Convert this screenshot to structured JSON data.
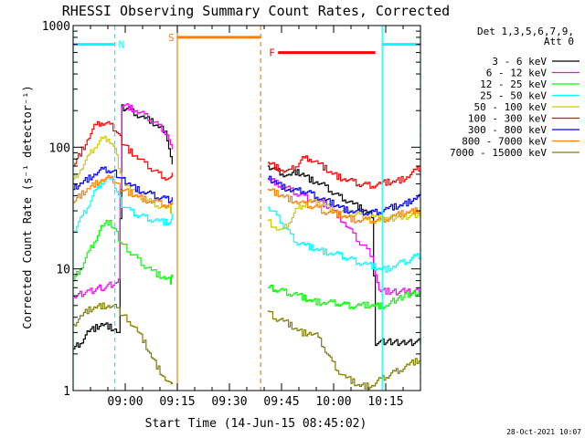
{
  "chart_data": {
    "type": "line",
    "title": "RHESSI Observing Summary Count Rates, Corrected",
    "xlabel": "Start Time (14-Jun-15 08:45:02)",
    "ylabel": "Corrected Count Rate (s⁻¹ detector⁻¹)",
    "yscale": "log",
    "ylim": [
      1,
      1000
    ],
    "xlim_minutes": [
      0,
      100
    ],
    "x_tick_labels": [
      "09:00",
      "09:15",
      "09:30",
      "09:45",
      "10:00",
      "10:15"
    ],
    "x_tick_minutes": [
      15,
      30,
      45,
      60,
      75,
      90
    ],
    "y_tick_labels": [
      "1",
      "10",
      "100",
      "1000"
    ],
    "y_tick_values": [
      1,
      10,
      100,
      1000
    ],
    "legend_header": [
      "Det 1,3,5,6,7,9,",
      "Att 0"
    ],
    "timestamp": "28-Oct-2021 10:07",
    "annotations": [
      {
        "label": "N",
        "color": "#00ffff",
        "start_min": 0,
        "end_min": 12,
        "y": 700
      },
      {
        "label": "S",
        "color": "#ff8000",
        "start_min": 30,
        "end_min": 54,
        "y": 800
      },
      {
        "label": "F",
        "color": "#ff0000",
        "start_min": 59,
        "end_min": 87,
        "y": 600
      },
      {
        "label": "",
        "color": "#00ffff",
        "start_min": 89,
        "end_min": 100,
        "y": 700
      }
    ],
    "vlines": [
      {
        "minute": 0,
        "color": "#00ffff",
        "style": "solid"
      },
      {
        "minute": 12,
        "color": "#00ffff",
        "style": "dashed"
      },
      {
        "minute": 30,
        "color": "#ff8000",
        "style": "solid"
      },
      {
        "minute": 54,
        "color": "#ff8000",
        "style": "dashed"
      },
      {
        "minute": 89,
        "color": "#00ffff",
        "style": "solid"
      },
      {
        "minute": 100,
        "color": "#00ffff",
        "style": "dashed"
      }
    ],
    "series": [
      {
        "name": "3 - 6 keV",
        "color": "#000000",
        "x": [
          0,
          2,
          4,
          6,
          8,
          10,
          12,
          13,
          14,
          16,
          18,
          20,
          22,
          24,
          26,
          27,
          28.5,
          56,
          58,
          60,
          62,
          64,
          66,
          68,
          70,
          72,
          74,
          76,
          78,
          80,
          82,
          84,
          86,
          87,
          90,
          95,
          100
        ],
        "y": [
          2.2,
          2.5,
          3.0,
          3.2,
          3.5,
          3.4,
          3.2,
          3.0,
          210,
          205,
          190,
          175,
          165,
          150,
          140,
          120,
          70,
          70,
          65,
          62,
          58,
          62,
          60,
          55,
          52,
          48,
          44,
          40,
          38,
          35,
          32,
          30,
          28,
          2.5,
          2.5,
          2.5,
          2.5
        ]
      },
      {
        "name": "6 - 12 keV",
        "color": "#ff00ff",
        "x": [
          0,
          4,
          8,
          12,
          13,
          14,
          16,
          18,
          20,
          22,
          24,
          26,
          27,
          28.5,
          56,
          58,
          60,
          62,
          64,
          66,
          68,
          70,
          72,
          74,
          76,
          78,
          80,
          82,
          84,
          86,
          88,
          90,
          95,
          100
        ],
        "y": [
          6,
          6.5,
          7,
          7.5,
          8,
          225,
          215,
          200,
          185,
          170,
          155,
          140,
          130,
          90,
          55,
          52,
          48,
          45,
          42,
          40,
          38,
          36,
          34,
          32,
          28,
          24,
          20,
          17,
          15,
          13,
          6.5,
          6.5,
          6.5,
          6.5
        ]
      },
      {
        "name": "12 - 25 keV",
        "color": "#00ff00",
        "x": [
          0,
          2,
          4,
          6,
          8,
          10,
          11,
          12,
          13,
          14,
          16,
          18,
          20,
          22,
          24,
          26,
          28,
          28.5,
          56,
          58,
          60,
          62,
          64,
          66,
          68,
          70,
          72,
          74,
          76,
          78,
          80,
          82,
          84,
          86,
          88,
          90,
          95,
          100
        ],
        "y": [
          8,
          10,
          13,
          17,
          22,
          24,
          23,
          21,
          18,
          16,
          14,
          12.5,
          11,
          10,
          9,
          8.5,
          8,
          9,
          7,
          6.8,
          6.6,
          6.4,
          6.2,
          5.8,
          5.5,
          5.4,
          5.3,
          5.2,
          5.2,
          5.1,
          5.0,
          5.0,
          5.0,
          5.0,
          5.0,
          5.0,
          6.0,
          6.5
        ]
      },
      {
        "name": "25 - 50 keV",
        "color": "#00ffff",
        "x": [
          0,
          2,
          4,
          6,
          8,
          10,
          11,
          12,
          13,
          14,
          16,
          18,
          20,
          22,
          24,
          26,
          28,
          28.5,
          56,
          58,
          60,
          62,
          64,
          66,
          68,
          70,
          72,
          74,
          76,
          78,
          80,
          82,
          84,
          86,
          88,
          90,
          92,
          94,
          96,
          98,
          100
        ],
        "y": [
          20,
          25,
          32,
          42,
          52,
          56,
          54,
          48,
          40,
          34,
          30,
          28,
          27,
          26,
          25,
          24,
          24,
          28,
          32,
          28,
          24,
          20,
          17,
          16,
          15,
          14.5,
          14,
          13.5,
          13,
          12.5,
          12,
          11.5,
          11,
          10.5,
          10,
          10,
          10.5,
          11,
          11.5,
          12.5,
          13
        ]
      },
      {
        "name": "50 - 100 keV",
        "color": "#cccc00",
        "x": [
          0,
          2,
          4,
          6,
          8,
          10,
          11,
          12,
          13,
          14,
          16,
          18,
          20,
          22,
          24,
          26,
          28,
          28.5,
          56,
          58,
          60,
          62,
          64,
          66,
          68,
          70,
          72,
          74,
          76,
          78,
          80,
          82,
          84,
          86,
          88,
          90,
          95,
          100
        ],
        "y": [
          55,
          65,
          80,
          100,
          115,
          120,
          110,
          95,
          70,
          55,
          48,
          42,
          38,
          36,
          34,
          32,
          30,
          35,
          25,
          22,
          20,
          24,
          30,
          34,
          36,
          35,
          34,
          32,
          30,
          29,
          28,
          28,
          27,
          27,
          26,
          26,
          27,
          28
        ]
      },
      {
        "name": "100 - 300 keV",
        "color": "#ff0000",
        "x": [
          0,
          2,
          4,
          6,
          8,
          10,
          11,
          12,
          13,
          14,
          16,
          18,
          20,
          22,
          24,
          26,
          28,
          28.5,
          56,
          58,
          60,
          62,
          64,
          66,
          68,
          70,
          72,
          74,
          76,
          78,
          80,
          82,
          84,
          86,
          88,
          90,
          92,
          94,
          96,
          98,
          100
        ],
        "y": [
          70,
          90,
          115,
          145,
          160,
          155,
          150,
          140,
          125,
          110,
          95,
          85,
          75,
          68,
          62,
          58,
          55,
          60,
          75,
          70,
          65,
          62,
          70,
          80,
          82,
          75,
          68,
          62,
          58,
          55,
          52,
          50,
          49,
          49,
          50,
          51,
          52,
          54,
          57,
          62,
          68
        ]
      },
      {
        "name": "300 - 800 keV",
        "color": "#0000ff",
        "x": [
          0,
          2,
          4,
          6,
          8,
          10,
          11,
          12,
          13,
          14,
          16,
          18,
          20,
          22,
          24,
          26,
          28,
          28.5,
          56,
          58,
          60,
          62,
          64,
          66,
          68,
          70,
          72,
          74,
          76,
          78,
          80,
          82,
          84,
          86,
          88,
          90,
          92,
          94,
          96,
          98,
          100
        ],
        "y": [
          45,
          50,
          55,
          60,
          64,
          65,
          64,
          62,
          58,
          54,
          50,
          46,
          43,
          41,
          39,
          38,
          37,
          40,
          55,
          52,
          48,
          45,
          43,
          44,
          42,
          40,
          37,
          35,
          33,
          31,
          30,
          29,
          29,
          29,
          30,
          31,
          32,
          33,
          35,
          38,
          40
        ]
      },
      {
        "name": "800 - 7000 keV",
        "color": "#ff8000",
        "x": [
          0,
          2,
          4,
          6,
          8,
          10,
          11,
          12,
          13,
          14,
          16,
          18,
          20,
          22,
          24,
          26,
          28,
          28.5,
          56,
          58,
          60,
          62,
          64,
          66,
          68,
          70,
          72,
          74,
          76,
          78,
          80,
          82,
          84,
          86,
          88,
          90,
          92,
          94,
          96,
          98,
          100
        ],
        "y": [
          35,
          40,
          45,
          50,
          54,
          55,
          54,
          52,
          48,
          45,
          42,
          40,
          38,
          36,
          35,
          34,
          33,
          34,
          45,
          42,
          40,
          38,
          36,
          34,
          33,
          32,
          30,
          29,
          28,
          27,
          26,
          25,
          25,
          25,
          25,
          26,
          27,
          28,
          29,
          30,
          31
        ]
      },
      {
        "name": "7000 - 15000 keV",
        "color": "#808000",
        "x": [
          0,
          2,
          4,
          6,
          8,
          10,
          12,
          13,
          14,
          16,
          18,
          20,
          22,
          24,
          26,
          28,
          28.5,
          56,
          58,
          60,
          62,
          64,
          66,
          68,
          70,
          72,
          74,
          76,
          78,
          80,
          82,
          84,
          86,
          88,
          90,
          92,
          94,
          96,
          98,
          100
        ],
        "y": [
          3.5,
          4.0,
          4.5,
          4.8,
          5.0,
          5.0,
          4.8,
          4.5,
          4.2,
          3.8,
          3.2,
          2.6,
          2.0,
          1.6,
          1.3,
          1.1,
          1.1,
          4.5,
          4.0,
          3.8,
          3.5,
          3.2,
          3.0,
          3.0,
          2.8,
          2.3,
          1.8,
          1.5,
          1.3,
          1.2,
          1.1,
          1.1,
          1.1,
          1.2,
          1.3,
          1.4,
          1.5,
          1.6,
          1.7,
          1.8
        ]
      }
    ]
  }
}
